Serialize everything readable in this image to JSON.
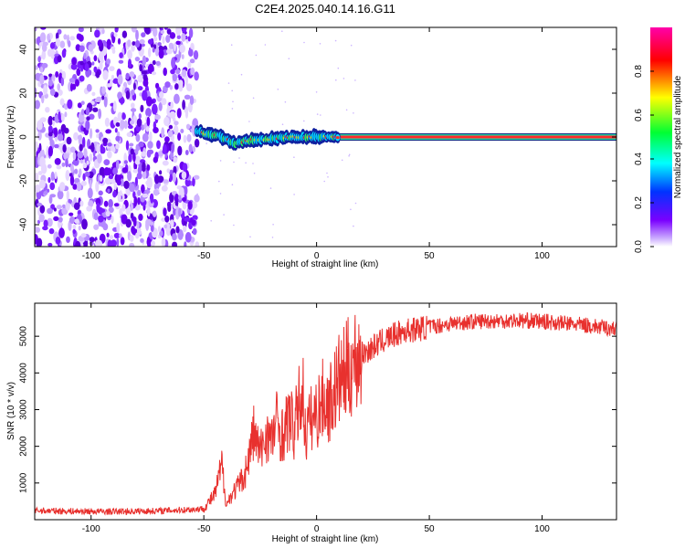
{
  "title": "C2E4.2025.040.14.16.G11",
  "colors": {
    "background": "#ffffff",
    "snr_line": "#e8312e",
    "colormap": [
      "#ffffff",
      "#c9a8ff",
      "#7a00ff",
      "#0033ff",
      "#00ffff",
      "#00ff33",
      "#ffff00",
      "#ff0000",
      "#ff00aa"
    ]
  },
  "chart_data": [
    {
      "type": "heatmap",
      "xlabel": "Height of straight line (km)",
      "ylabel": "Frequency (Hz)",
      "xlim": [
        -125,
        133
      ],
      "ylim": [
        -50,
        50
      ],
      "xticks": [
        -100,
        -50,
        0,
        50,
        100
      ],
      "yticks": [
        -40,
        -20,
        0,
        20,
        40
      ],
      "grid": false,
      "colorbar": {
        "label": "Normalized spectral amplitude",
        "range": [
          0,
          1
        ],
        "ticks": [
          0.0,
          0.2,
          0.4,
          0.6,
          0.8
        ]
      },
      "features": {
        "noise_region_x": [
          -125,
          -53
        ],
        "signal_start_x": -53,
        "signal_track": {
          "x": [
            -53,
            -48,
            -44,
            -40,
            -36,
            -32,
            -26,
            -20,
            -14,
            -8,
            0,
            10,
            20,
            133
          ],
          "frequency": [
            3,
            1,
            1,
            -1,
            -3,
            -2,
            -1,
            -1,
            0,
            0,
            0,
            0,
            0,
            0
          ]
        }
      }
    },
    {
      "type": "line",
      "xlabel": "Height of straight line (km)",
      "ylabel": "SNR (10 * v/v)",
      "xlim": [
        -125,
        133
      ],
      "ylim": [
        0,
        5900
      ],
      "xticks": [
        -100,
        -50,
        0,
        50,
        100
      ],
      "yticks": [
        1000,
        2000,
        3000,
        4000,
        5000
      ],
      "grid": false,
      "series": [
        {
          "x": [
            -125,
            -110,
            -90,
            -70,
            -55,
            -50,
            -45,
            -42,
            -40,
            -38,
            -35,
            -32,
            -30,
            -28,
            -25,
            -22,
            -20,
            -18,
            -15,
            -12,
            -10,
            -8,
            -6,
            -5,
            -3,
            0,
            3,
            5,
            8,
            10,
            12,
            15,
            18,
            20,
            25,
            30,
            35,
            40,
            45,
            50,
            55,
            60,
            65,
            70,
            75,
            80,
            85,
            90,
            95,
            100,
            105,
            110,
            115,
            120,
            125,
            133
          ],
          "y": [
            250,
            230,
            220,
            240,
            280,
            300,
            700,
            1500,
            400,
            650,
            900,
            1200,
            1700,
            2400,
            1800,
            2400,
            2100,
            2700,
            2300,
            2800,
            2400,
            3100,
            3500,
            2300,
            2700,
            2900,
            3300,
            3100,
            3500,
            3800,
            3900,
            4200,
            4400,
            4500,
            4700,
            4900,
            5050,
            5150,
            5200,
            5250,
            5300,
            5350,
            5380,
            5400,
            5420,
            5420,
            5430,
            5430,
            5420,
            5400,
            5380,
            5350,
            5320,
            5300,
            5250,
            5200
          ]
        }
      ]
    }
  ]
}
